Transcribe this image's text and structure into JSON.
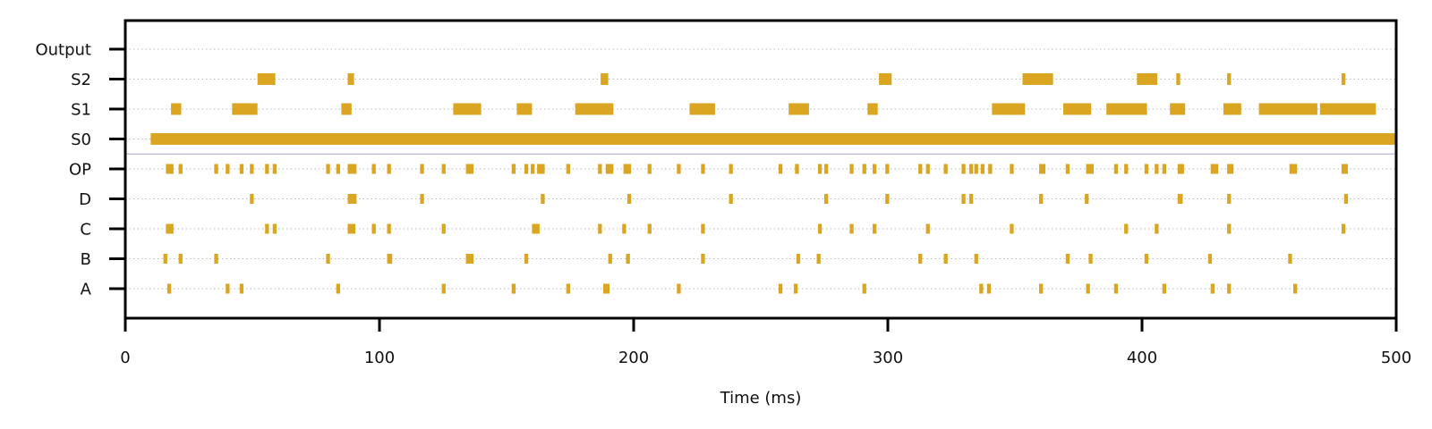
{
  "chart_data": {
    "type": "raster",
    "title": "",
    "xlabel": "Time (ms)",
    "ylabel": "",
    "xlim": [
      0,
      500
    ],
    "x_ticks": [
      0,
      100,
      200,
      300,
      400,
      500
    ],
    "grid": "horizontal dotted per row",
    "color": "#DAA520",
    "separator_color": "#B0A4C8",
    "rows": [
      "A",
      "B",
      "C",
      "D",
      "OP",
      "S0",
      "S1",
      "S2",
      "Output"
    ],
    "events": {
      "A": [
        [
          16.5,
          1.5
        ],
        [
          39.5,
          1.5
        ],
        [
          45,
          1.5
        ],
        [
          83,
          1.5
        ],
        [
          124.5,
          1.5
        ],
        [
          152,
          1.5
        ],
        [
          173.5,
          1.5
        ],
        [
          188,
          2.5
        ],
        [
          217,
          1.5
        ],
        [
          257,
          1.5
        ],
        [
          263,
          1.5
        ],
        [
          290,
          1.5
        ],
        [
          336,
          1.5
        ],
        [
          339,
          1.5
        ],
        [
          359.5,
          1.5
        ],
        [
          378,
          1.5
        ],
        [
          389,
          1.5
        ],
        [
          408,
          1.5
        ],
        [
          427,
          1.5
        ],
        [
          433.5,
          1.5
        ],
        [
          459.5,
          1.5
        ]
      ],
      "B": [
        [
          15,
          1.5
        ],
        [
          21,
          1.5
        ],
        [
          35,
          1.5
        ],
        [
          79,
          1.5
        ],
        [
          103,
          2
        ],
        [
          134,
          3
        ],
        [
          157,
          1.5
        ],
        [
          190,
          1.5
        ],
        [
          197,
          1.5
        ],
        [
          226.5,
          1.5
        ],
        [
          264,
          1.5
        ],
        [
          272,
          1.5
        ],
        [
          312,
          1.5
        ],
        [
          322,
          1.5
        ],
        [
          334,
          1.5
        ],
        [
          370,
          1.5
        ],
        [
          379,
          1.5
        ],
        [
          401,
          1.5
        ],
        [
          426,
          1.5
        ],
        [
          457.5,
          1.5
        ]
      ],
      "C": [
        [
          16,
          3
        ],
        [
          55,
          1.5
        ],
        [
          58,
          1.5
        ],
        [
          87.5,
          3
        ],
        [
          97,
          1.5
        ],
        [
          103,
          1.5
        ],
        [
          124.5,
          1.5
        ],
        [
          160,
          3
        ],
        [
          186,
          1.5
        ],
        [
          195.5,
          1.5
        ],
        [
          205.5,
          1.5
        ],
        [
          226.5,
          1.5
        ],
        [
          272.5,
          1.5
        ],
        [
          285,
          1.5
        ],
        [
          294,
          1.5
        ],
        [
          315,
          1.5
        ],
        [
          348,
          1.5
        ],
        [
          393,
          1.5
        ],
        [
          405,
          1.5
        ],
        [
          433.5,
          1.5
        ],
        [
          478.5,
          1.5
        ]
      ],
      "D": [
        [
          49,
          1.5
        ],
        [
          87.5,
          3.5
        ],
        [
          116,
          1.5
        ],
        [
          163.5,
          1.5
        ],
        [
          197.5,
          1.5
        ],
        [
          237.5,
          1.5
        ],
        [
          275,
          1.5
        ],
        [
          299,
          1.5
        ],
        [
          329,
          1.5
        ],
        [
          332,
          1.5
        ],
        [
          359.5,
          1.5
        ],
        [
          377.5,
          1.5
        ],
        [
          414,
          2
        ],
        [
          433.5,
          1.5
        ],
        [
          479.5,
          1.5
        ]
      ],
      "OP": [
        [
          16,
          3
        ],
        [
          21,
          1.5
        ],
        [
          35,
          1.5
        ],
        [
          39.5,
          1.5
        ],
        [
          45,
          1.5
        ],
        [
          49,
          1.5
        ],
        [
          55,
          1.5
        ],
        [
          58,
          1.5
        ],
        [
          79,
          1.5
        ],
        [
          83,
          1.5
        ],
        [
          87.5,
          3.5
        ],
        [
          97,
          1.5
        ],
        [
          103,
          1.5
        ],
        [
          116,
          1.5
        ],
        [
          124.5,
          1.5
        ],
        [
          134,
          3
        ],
        [
          152,
          1.5
        ],
        [
          157,
          1.5
        ],
        [
          159.5,
          1.5
        ],
        [
          162,
          3
        ],
        [
          173.5,
          1.5
        ],
        [
          186,
          1.5
        ],
        [
          189,
          3
        ],
        [
          196,
          3
        ],
        [
          205.5,
          1.5
        ],
        [
          217,
          1.5
        ],
        [
          226.5,
          1.5
        ],
        [
          237.5,
          1.5
        ],
        [
          257,
          1.5
        ],
        [
          263.5,
          1.5
        ],
        [
          272.5,
          1.5
        ],
        [
          275,
          1.5
        ],
        [
          285,
          1.5
        ],
        [
          290,
          1.5
        ],
        [
          294,
          1.5
        ],
        [
          299,
          1.5
        ],
        [
          312,
          1.5
        ],
        [
          315,
          1.5
        ],
        [
          322,
          1.5
        ],
        [
          329,
          1.5
        ],
        [
          332,
          1.5
        ],
        [
          334,
          1.5
        ],
        [
          336.5,
          1.5
        ],
        [
          339.5,
          1.5
        ],
        [
          348,
          1.5
        ],
        [
          359.5,
          2.5
        ],
        [
          370,
          1.5
        ],
        [
          378,
          3
        ],
        [
          389,
          1.5
        ],
        [
          393,
          1.5
        ],
        [
          401,
          1.5
        ],
        [
          405,
          1.5
        ],
        [
          408,
          1.5
        ],
        [
          414,
          2.5
        ],
        [
          427,
          3
        ],
        [
          433.5,
          2.5
        ],
        [
          458,
          3
        ],
        [
          478.5,
          2.5
        ]
      ],
      "S0": [
        [
          10,
          490
        ]
      ],
      "S1": [
        [
          18,
          4
        ],
        [
          42,
          10
        ],
        [
          85,
          4
        ],
        [
          129,
          11
        ],
        [
          154,
          6
        ],
        [
          177,
          13
        ],
        [
          189,
          3
        ],
        [
          222,
          10
        ],
        [
          261,
          8
        ],
        [
          292,
          4
        ],
        [
          341,
          13
        ],
        [
          369,
          11
        ],
        [
          386,
          16
        ],
        [
          411,
          6
        ],
        [
          432,
          7
        ],
        [
          446,
          23
        ],
        [
          470,
          22
        ]
      ],
      "S2": [
        [
          52,
          7
        ],
        [
          87.5,
          2.5
        ],
        [
          187,
          3
        ],
        [
          296.5,
          5
        ],
        [
          353,
          12
        ],
        [
          398,
          8
        ],
        [
          413.5,
          1.5
        ],
        [
          433.5,
          1.5
        ],
        [
          478.5,
          1.5
        ]
      ],
      "Output": []
    }
  }
}
